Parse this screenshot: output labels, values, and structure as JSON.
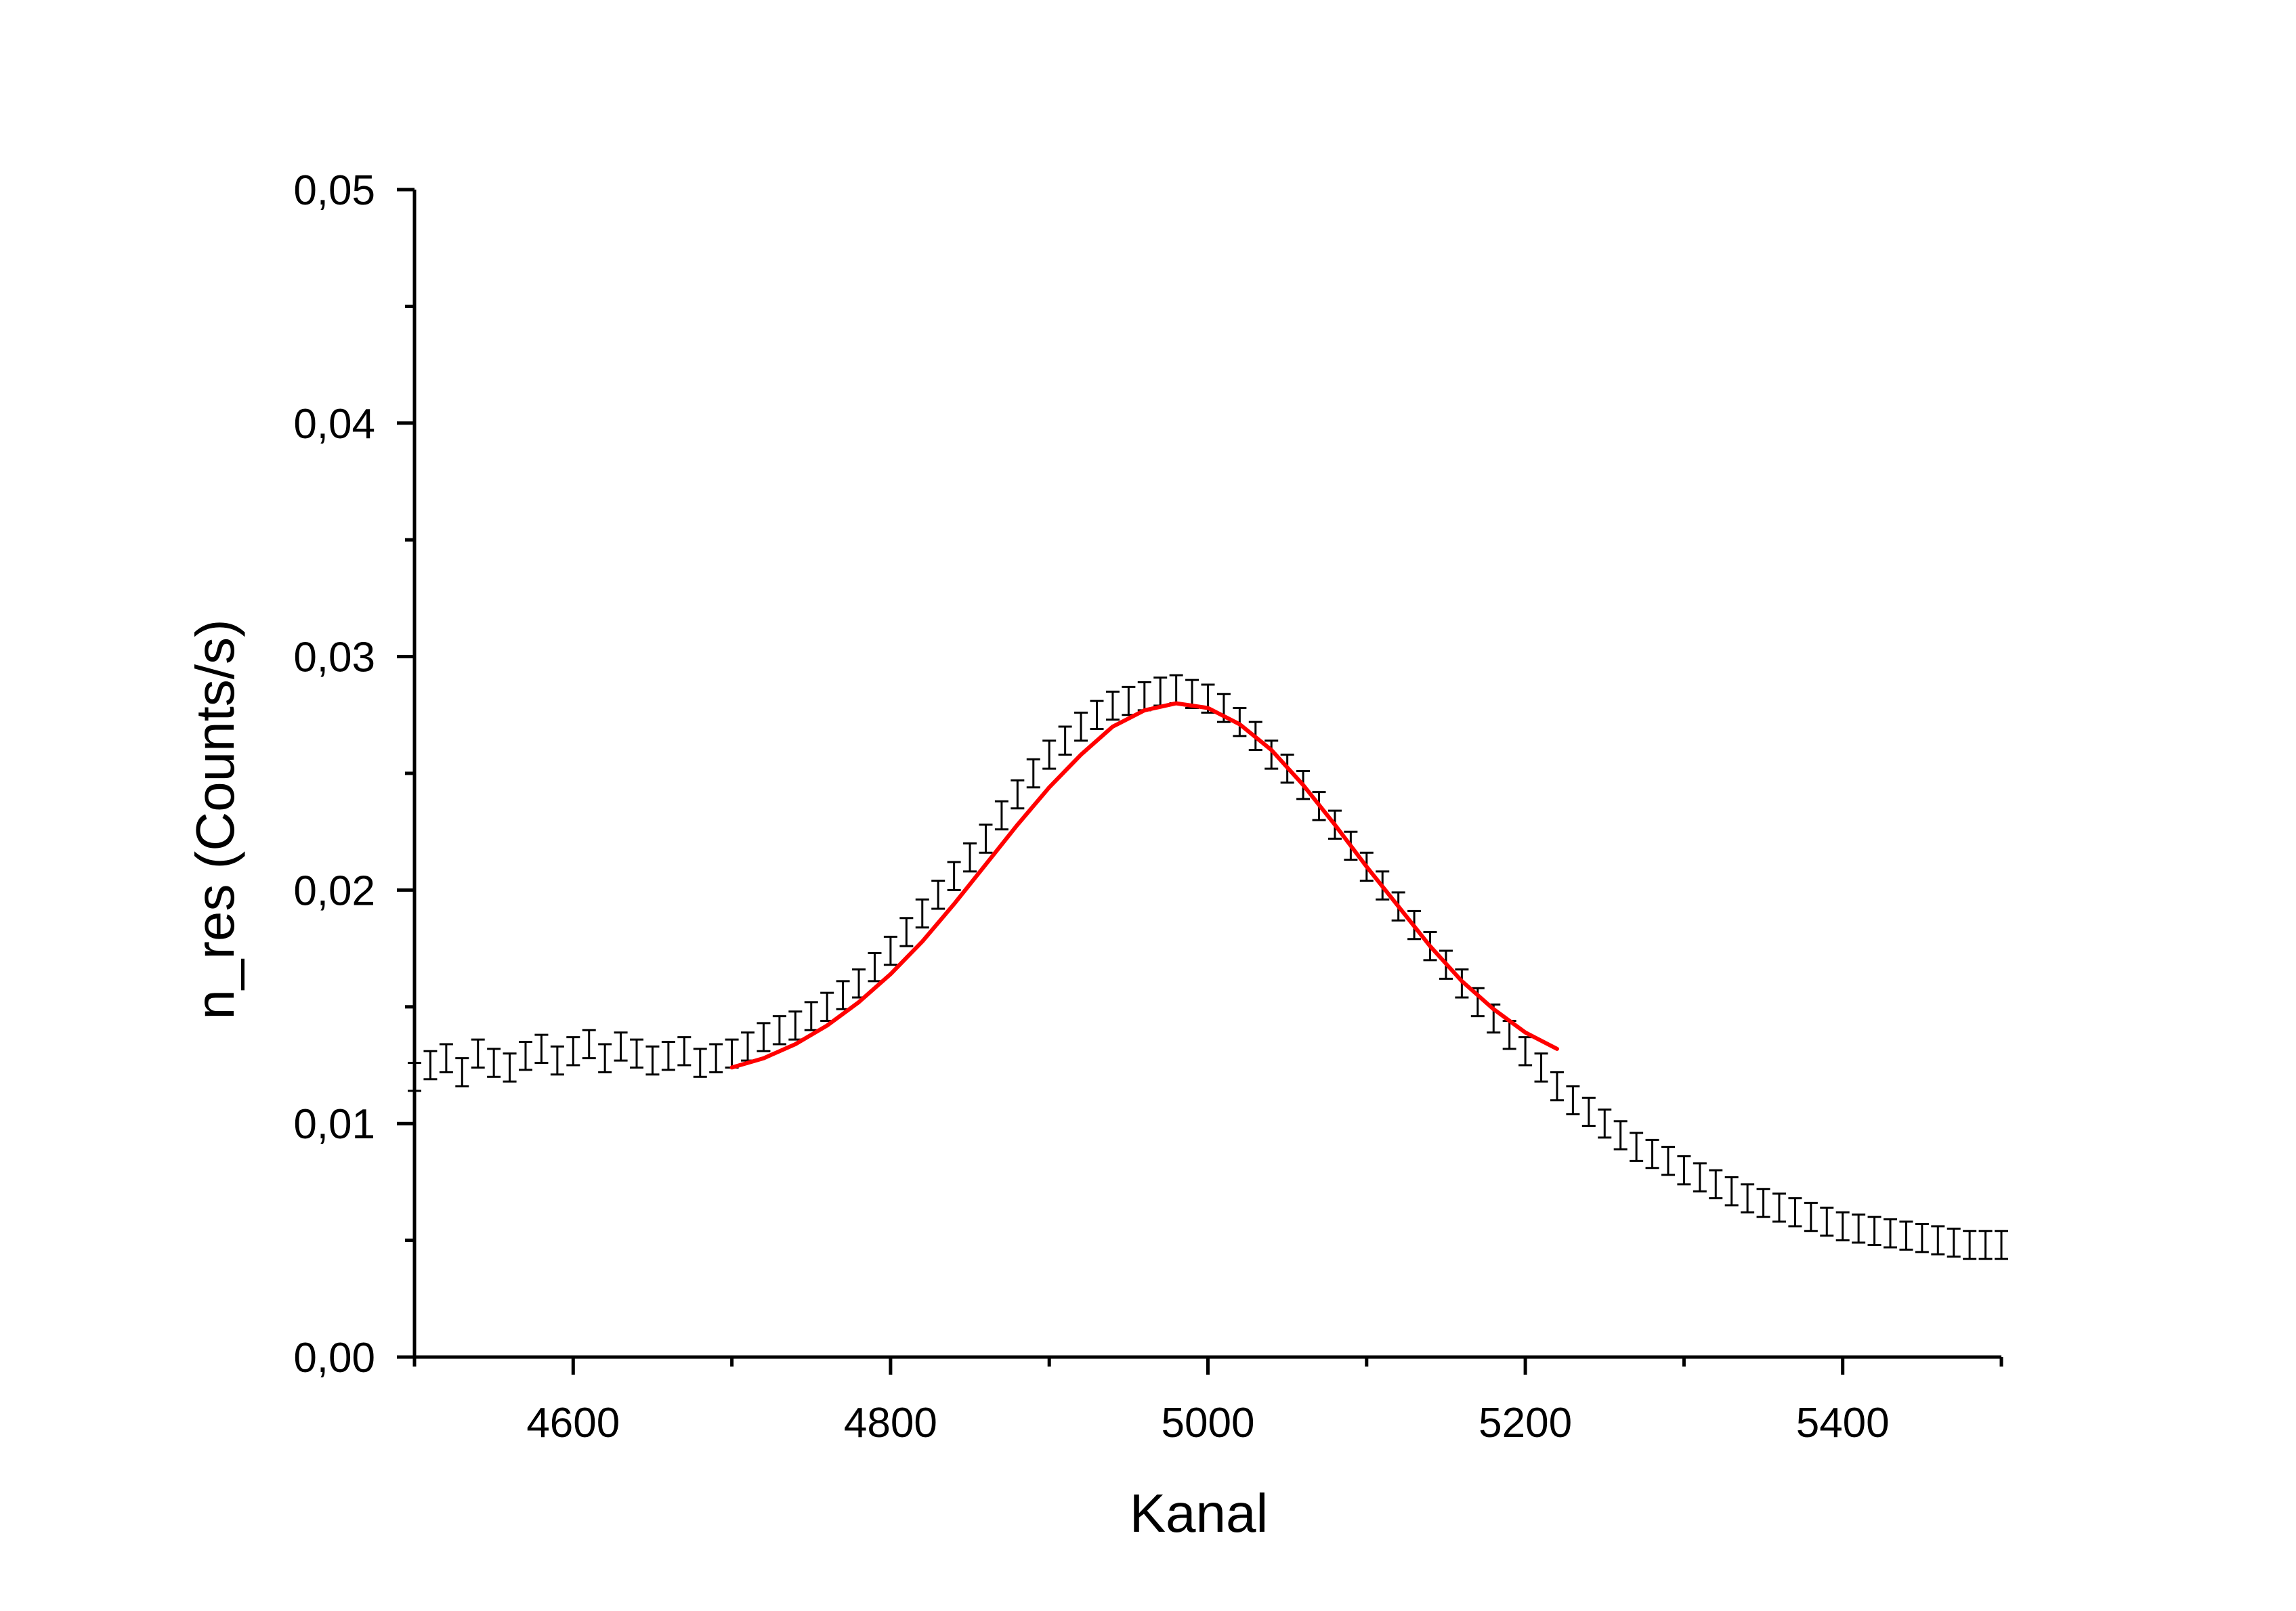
{
  "chart_data": {
    "type": "scatter",
    "title": "",
    "xlabel": "Kanal",
    "ylabel": "n_res (Counts/s)",
    "xlim": [
      4500,
      5500
    ],
    "ylim": [
      0.0,
      0.05
    ],
    "x_major_ticks": [
      4600,
      4800,
      5000,
      5200,
      5400
    ],
    "x_minor_ticks": [
      4500,
      4700,
      4900,
      5100,
      5300,
      5500
    ],
    "x_tick_labels": [
      "4600",
      "4800",
      "5000",
      "5200",
      "5400"
    ],
    "y_major_ticks": [
      0.0,
      0.01,
      0.02,
      0.03,
      0.04,
      0.05
    ],
    "y_minor_ticks": [
      0.005,
      0.015,
      0.025,
      0.035,
      0.045
    ],
    "y_tick_labels": [
      "0,00",
      "0,01",
      "0,02",
      "0,03",
      "0,04",
      "0,05"
    ],
    "grid": false,
    "legend": "none",
    "series": [
      {
        "kind": "data-with-error-bars",
        "color": "#000000",
        "error_bar": 0.0006,
        "x": [
          4500,
          4510,
          4520,
          4530,
          4540,
          4550,
          4560,
          4570,
          4580,
          4590,
          4600,
          4610,
          4620,
          4630,
          4640,
          4650,
          4660,
          4670,
          4680,
          4690,
          4700,
          4710,
          4720,
          4730,
          4740,
          4750,
          4760,
          4770,
          4780,
          4790,
          4800,
          4810,
          4820,
          4830,
          4840,
          4850,
          4860,
          4870,
          4880,
          4890,
          4900,
          4910,
          4920,
          4930,
          4940,
          4950,
          4960,
          4970,
          4980,
          4990,
          5000,
          5010,
          5020,
          5030,
          5040,
          5050,
          5060,
          5070,
          5080,
          5090,
          5100,
          5110,
          5120,
          5130,
          5140,
          5150,
          5160,
          5170,
          5180,
          5190,
          5200,
          5210,
          5220,
          5230,
          5240,
          5250,
          5260,
          5270,
          5280,
          5290,
          5300,
          5310,
          5320,
          5330,
          5340,
          5350,
          5360,
          5370,
          5380,
          5390,
          5400,
          5410,
          5420,
          5430,
          5440,
          5450,
          5460,
          5470,
          5480,
          5490,
          5500
        ],
        "y": [
          0.012,
          0.0125,
          0.0128,
          0.0122,
          0.013,
          0.0126,
          0.0124,
          0.0129,
          0.0132,
          0.0127,
          0.0131,
          0.0134,
          0.0128,
          0.0133,
          0.013,
          0.0127,
          0.0129,
          0.0131,
          0.0126,
          0.0128,
          0.013,
          0.0133,
          0.0137,
          0.014,
          0.0142,
          0.0146,
          0.015,
          0.0155,
          0.016,
          0.0167,
          0.0174,
          0.0182,
          0.019,
          0.0198,
          0.0206,
          0.0214,
          0.0222,
          0.0232,
          0.0241,
          0.025,
          0.0258,
          0.0264,
          0.027,
          0.0275,
          0.0279,
          0.0281,
          0.0283,
          0.0285,
          0.0286,
          0.0284,
          0.0282,
          0.0278,
          0.0272,
          0.0266,
          0.0258,
          0.0252,
          0.0245,
          0.0236,
          0.0228,
          0.0219,
          0.021,
          0.0202,
          0.0193,
          0.0185,
          0.0176,
          0.0168,
          0.016,
          0.0152,
          0.0145,
          0.0138,
          0.0131,
          0.0124,
          0.0116,
          0.011,
          0.0105,
          0.01,
          0.0095,
          0.009,
          0.0087,
          0.0084,
          0.008,
          0.0077,
          0.0074,
          0.0071,
          0.0068,
          0.0066,
          0.0064,
          0.0062,
          0.006,
          0.0058,
          0.0056,
          0.0055,
          0.0054,
          0.0053,
          0.0052,
          0.0051,
          0.005,
          0.0049,
          0.0048,
          0.0048,
          0.0048
        ]
      },
      {
        "kind": "fit",
        "color": "#ff0000",
        "x": [
          4700,
          4720,
          4740,
          4760,
          4780,
          4800,
          4820,
          4840,
          4860,
          4880,
          4900,
          4920,
          4940,
          4960,
          4980,
          5000,
          5020,
          5040,
          5060,
          5080,
          5100,
          5120,
          5140,
          5160,
          5180,
          5200,
          5220
        ],
        "y": [
          0.0124,
          0.0128,
          0.0134,
          0.0142,
          0.0152,
          0.0164,
          0.0178,
          0.0194,
          0.0211,
          0.0228,
          0.0244,
          0.0258,
          0.027,
          0.0277,
          0.028,
          0.0278,
          0.0271,
          0.026,
          0.0245,
          0.0228,
          0.021,
          0.0193,
          0.0176,
          0.0161,
          0.0149,
          0.0139,
          0.0132
        ]
      }
    ]
  }
}
